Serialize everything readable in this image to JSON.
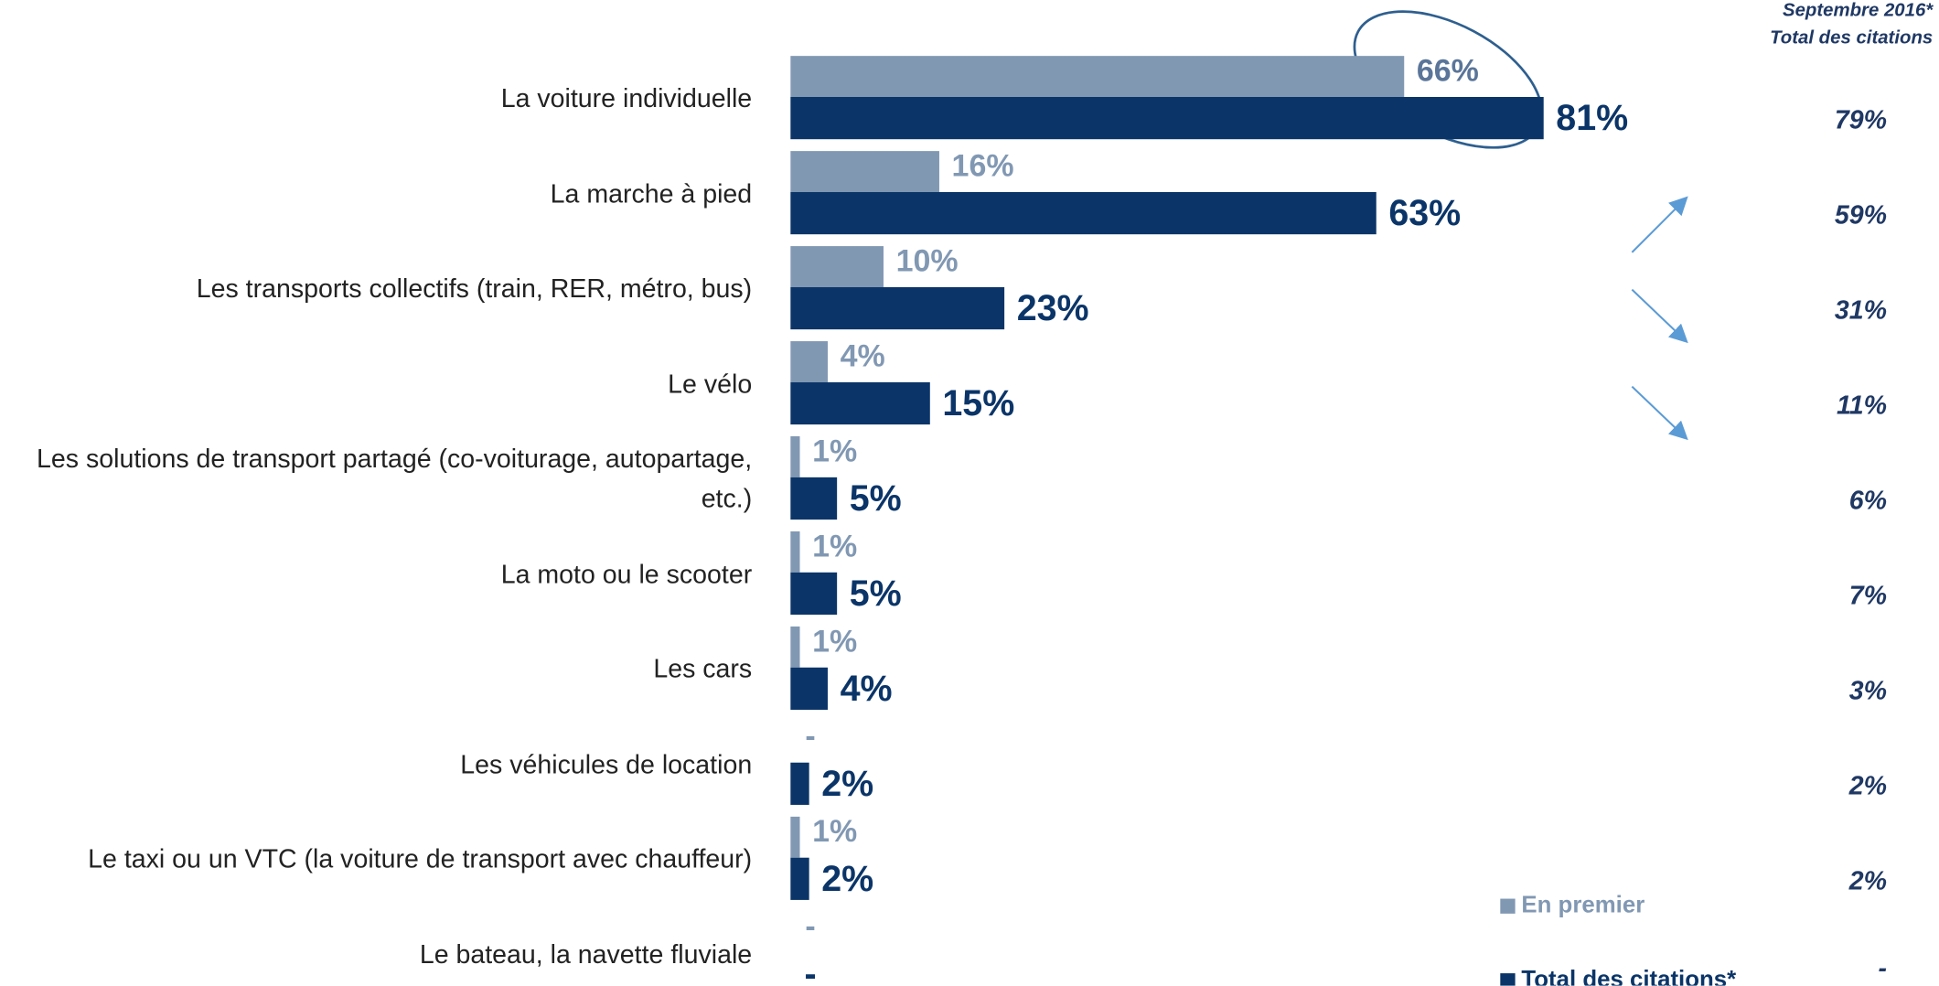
{
  "chart_data": {
    "type": "bar",
    "orientation": "horizontal",
    "categories": [
      "La voiture individuelle",
      "La marche à pied",
      "Les transports collectifs (train, RER, métro, bus)",
      "Le vélo",
      "Les solutions de transport partagé (co-voiturage, autopartage, etc.)",
      "La moto ou le scooter",
      "Les cars",
      "Les véhicules de location",
      "Le taxi ou un VTC (la voiture de transport avec chauffeur)",
      "Le bateau, la navette fluviale"
    ],
    "series": [
      {
        "name": "En premier",
        "color": "#8198b3",
        "values": [
          66,
          16,
          10,
          4,
          1,
          1,
          1,
          null,
          1,
          null
        ],
        "value_labels": [
          "66%",
          "16%",
          "10%",
          "4%",
          "1%",
          "1%",
          "1%",
          "-",
          "1%",
          "-"
        ]
      },
      {
        "name": "Total des citations*",
        "color": "#0b3568",
        "values": [
          81,
          63,
          23,
          15,
          5,
          5,
          4,
          2,
          2,
          null
        ],
        "value_labels": [
          "81%",
          "63%",
          "23%",
          "15%",
          "5%",
          "5%",
          "4%",
          "2%",
          "2%",
          "-"
        ]
      }
    ],
    "comparison": {
      "title": "Septembre 2016*",
      "subtitle": "Total des citations",
      "values": [
        79,
        59,
        31,
        11,
        6,
        7,
        3,
        2,
        2,
        null
      ],
      "value_labels": [
        "79%",
        "59%",
        "31%",
        "11%",
        "6%",
        "7%",
        "3%",
        "2%",
        "2%",
        "-"
      ]
    },
    "xlim": [
      0,
      100
    ]
  }
}
